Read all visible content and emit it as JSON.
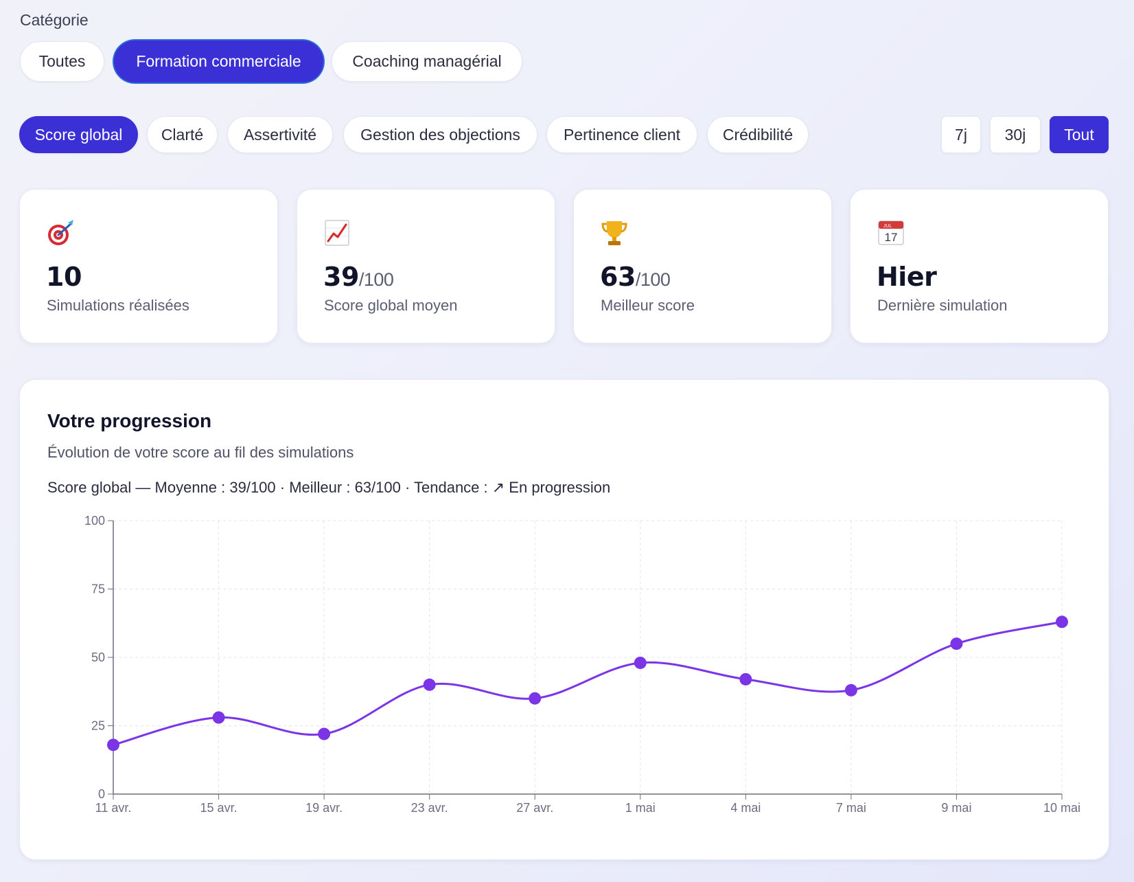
{
  "category": {
    "label": "Catégorie",
    "options": [
      "Toutes",
      "Formation commerciale",
      "Coaching managérial"
    ],
    "selected": "Formation commerciale"
  },
  "metrics": {
    "options": [
      "Score global",
      "Clarté",
      "Assertivité",
      "Gestion des objections",
      "Pertinence client",
      "Crédibilité"
    ],
    "selected": "Score global"
  },
  "period": {
    "options": [
      "7j",
      "30j",
      "Tout"
    ],
    "selected": "Tout"
  },
  "stats": [
    {
      "icon": "target-icon",
      "value": "10",
      "suffix": "",
      "label": "Simulations réalisées"
    },
    {
      "icon": "chart-increasing-icon",
      "value": "39",
      "suffix": "/100",
      "label": "Score global moyen"
    },
    {
      "icon": "trophy-icon",
      "value": "63",
      "suffix": "/100",
      "label": "Meilleur score"
    },
    {
      "icon": "calendar-icon",
      "value": "Hier",
      "suffix": "",
      "label": "Dernière simulation"
    }
  ],
  "calendar_icon_text": {
    "month": "JUL",
    "day": "17"
  },
  "chart": {
    "title": "Votre progression",
    "subtitle": "Évolution de votre score au fil des simulations",
    "summary": "Score global — Moyenne : 39/100 · Meilleur : 63/100 · Tendance : ↗ En progression"
  },
  "colors": {
    "accent": "#3b2fd6",
    "line": "#7b35e6",
    "point": "#7b35e6"
  },
  "chart_data": {
    "type": "line",
    "categories": [
      "11 avr.",
      "15 avr.",
      "19 avr.",
      "23 avr.",
      "27 avr.",
      "1 mai",
      "4 mai",
      "7 mai",
      "9 mai",
      "10 mai"
    ],
    "series": [
      {
        "values": [
          18,
          28,
          22,
          40,
          35,
          48,
          42,
          38,
          55,
          63
        ]
      }
    ],
    "ylim": [
      0,
      100
    ],
    "yticks": [
      0,
      25,
      50,
      75,
      100
    ],
    "grid": true,
    "smooth": true
  }
}
